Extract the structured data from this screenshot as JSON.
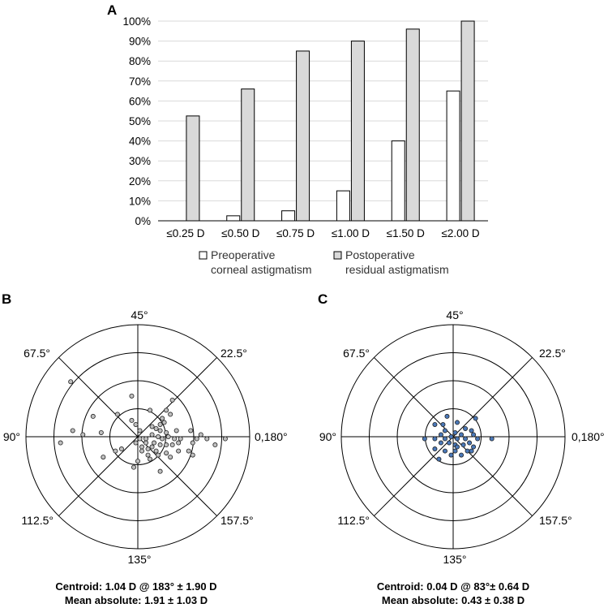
{
  "colors": {
    "pre_fill": "#ffffff",
    "post_fill": "#d9d9d9",
    "stroke": "#000000",
    "grid": "#d9d9d9",
    "scatter_b_fill": "#bfbfbf",
    "scatter_c_fill": "#4a78b8"
  },
  "panels": {
    "a": "A",
    "b": "B",
    "c": "C"
  },
  "legend": {
    "pre": [
      "Preoperative",
      "corneal astigmatism"
    ],
    "post": [
      "Postoperative",
      "residual astigmatism"
    ]
  },
  "angles": {
    "top": "45°",
    "upper_left": "67.5°",
    "upper_right": "22.5°",
    "left": "90°",
    "right": "0,180°",
    "lower_left": "112.5°",
    "lower_right": "157.5°",
    "bottom": "135°"
  },
  "stats": {
    "b_line1": "Centroid: 1.04 D @ 183° ± 1.90 D",
    "b_line2": "Mean absolute: 1.91 ± 1.03 D",
    "c_line1": "Centroid: 0.04 D @ 83°± 0.64 D",
    "c_line2": "Mean absolute: 0.43 ± 0.38 D"
  },
  "chart_data": [
    {
      "type": "bar",
      "panel": "A",
      "categories": [
        "≤0.25 D",
        "≤0.50 D",
        "≤0.75 D",
        "≤1.00 D",
        "≤1.50 D",
        "≤2.00 D"
      ],
      "series": [
        {
          "name": "Preoperative corneal astigmatism",
          "values": [
            0,
            2.5,
            5,
            15,
            40,
            65
          ]
        },
        {
          "name": "Postoperative residual astigmatism",
          "values": [
            52.5,
            66,
            85,
            90,
            96,
            100
          ]
        }
      ],
      "ylim": [
        0,
        100
      ],
      "yticks": [
        "0%",
        "10%",
        "20%",
        "30%",
        "40%",
        "50%",
        "60%",
        "70%",
        "80%",
        "90%",
        "100%"
      ],
      "grid": true
    },
    {
      "type": "scatter",
      "panel": "B",
      "coordinate_system": "double-angle polar",
      "rings": 4,
      "points": [
        [
          -1.65,
          1.35
        ],
        [
          -0.15,
          1.0
        ],
        [
          0.85,
          0.9
        ],
        [
          0.3,
          0.65
        ],
        [
          -0.5,
          0.55
        ],
        [
          0.7,
          0.65
        ],
        [
          0.8,
          0.55
        ],
        [
          0.6,
          0.45
        ],
        [
          -1.1,
          0.5
        ],
        [
          -0.15,
          0.4
        ],
        [
          -0.05,
          0.3
        ],
        [
          0.55,
          0.3
        ],
        [
          0.65,
          0.35
        ],
        [
          -1.6,
          0.15
        ],
        [
          -1.35,
          0.05
        ],
        [
          -0.9,
          0.1
        ],
        [
          0.05,
          0.15
        ],
        [
          0.35,
          0.25
        ],
        [
          0.45,
          0.2
        ],
        [
          0.55,
          0.15
        ],
        [
          0.7,
          0.1
        ],
        [
          0.95,
          0.15
        ],
        [
          1.3,
          0.15
        ],
        [
          1.55,
          0.05
        ],
        [
          2.15,
          -0.05
        ],
        [
          1.45,
          -0.05
        ],
        [
          1.7,
          -0.05
        ],
        [
          0.05,
          -0.05
        ],
        [
          0.2,
          -0.05
        ],
        [
          0.35,
          0.05
        ],
        [
          0.5,
          0.0
        ],
        [
          0.6,
          -0.05
        ],
        [
          0.75,
          0.0
        ],
        [
          0.9,
          -0.05
        ],
        [
          1.05,
          -0.05
        ],
        [
          -0.05,
          -0.15
        ],
        [
          0.2,
          -0.15
        ],
        [
          0.4,
          -0.15
        ],
        [
          0.55,
          -0.2
        ],
        [
          0.7,
          -0.2
        ],
        [
          0.85,
          -0.2
        ],
        [
          1.0,
          -0.15
        ],
        [
          1.35,
          -0.15
        ],
        [
          1.9,
          -0.2
        ],
        [
          0.1,
          -0.25
        ],
        [
          0.25,
          -0.3
        ],
        [
          0.35,
          -0.25
        ],
        [
          0.45,
          -0.35
        ],
        [
          -1.9,
          -0.15
        ],
        [
          -0.4,
          -0.3
        ],
        [
          0.1,
          -0.35
        ],
        [
          0.25,
          -0.45
        ],
        [
          0.5,
          -0.45
        ],
        [
          0.7,
          -0.4
        ],
        [
          1.0,
          -0.35
        ],
        [
          1.25,
          -0.35
        ],
        [
          1.35,
          -0.45
        ],
        [
          -0.55,
          -0.35
        ],
        [
          -0.85,
          -0.5
        ],
        [
          0.0,
          -0.6
        ],
        [
          0.3,
          -0.55
        ],
        [
          0.8,
          -0.5
        ],
        [
          -0.1,
          -0.75
        ],
        [
          0.55,
          -0.85
        ]
      ]
    },
    {
      "type": "scatter",
      "panel": "C",
      "coordinate_system": "double-angle polar",
      "rings": 4,
      "points": [
        [
          -0.15,
          0.5
        ],
        [
          0.55,
          0.45
        ],
        [
          -0.45,
          0.3
        ],
        [
          0.1,
          0.35
        ],
        [
          0.3,
          0.2
        ],
        [
          -0.2,
          0.15
        ],
        [
          0.45,
          0.15
        ],
        [
          -0.3,
          0.05
        ],
        [
          0.05,
          0.1
        ],
        [
          0.2,
          0.05
        ],
        [
          0.5,
          0.05
        ],
        [
          -0.7,
          -0.05
        ],
        [
          -0.45,
          -0.05
        ],
        [
          -0.2,
          -0.05
        ],
        [
          -0.05,
          0.0
        ],
        [
          0.1,
          -0.05
        ],
        [
          0.3,
          -0.05
        ],
        [
          0.6,
          -0.05
        ],
        [
          0.95,
          -0.05
        ],
        [
          -0.3,
          -0.15
        ],
        [
          -0.1,
          -0.15
        ],
        [
          0.05,
          -0.2
        ],
        [
          0.25,
          -0.2
        ],
        [
          0.4,
          -0.15
        ],
        [
          -0.45,
          -0.3
        ],
        [
          -0.2,
          -0.35
        ],
        [
          0.05,
          -0.35
        ],
        [
          0.35,
          -0.35
        ],
        [
          0.5,
          -0.25
        ],
        [
          -0.05,
          -0.45
        ],
        [
          0.2,
          -0.45
        ],
        [
          -0.35,
          -0.55
        ],
        [
          0.45,
          -0.35
        ],
        [
          0.1,
          -0.25
        ],
        [
          -0.25,
          0.3
        ]
      ]
    }
  ]
}
